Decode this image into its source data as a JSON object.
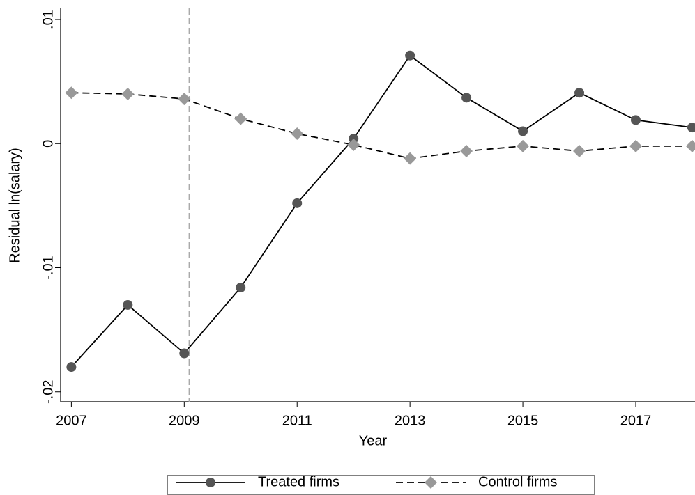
{
  "chart_data": {
    "type": "line",
    "x_label": "Year",
    "y_label": "Residual ln(salary)",
    "x": [
      2007,
      2008,
      2009,
      2010,
      2011,
      2012,
      2013,
      2014,
      2015,
      2016,
      2017,
      2018
    ],
    "series": [
      {
        "name": "Treated firms",
        "color": "#555555",
        "line_color": "#000000",
        "marker": "circle",
        "dash": false,
        "values": [
          -0.018,
          -0.013,
          -0.0169,
          -0.0116,
          -0.0048,
          0.0004,
          0.0071,
          0.0037,
          0.001,
          0.0041,
          0.0019,
          0.0013
        ]
      },
      {
        "name": "Control firms",
        "color": "#999999",
        "line_color": "#000000",
        "marker": "diamond",
        "dash": true,
        "values": [
          0.0041,
          0.004,
          0.0036,
          0.002,
          0.0008,
          -0.0001,
          -0.0012,
          -0.0006,
          -0.0002,
          -0.0006,
          -0.0002,
          -0.0002
        ]
      }
    ],
    "xlim": [
      2006.81,
      2018.05
    ],
    "ylim": [
      -0.0208,
      0.0109
    ],
    "xticks": [
      2007,
      2009,
      2011,
      2013,
      2015,
      2017
    ],
    "yticks": [
      {
        "value": -0.02,
        "label": "-.02"
      },
      {
        "value": -0.01,
        "label": "-.01"
      },
      0,
      {
        "value": 0.01,
        "label": ".01"
      }
    ],
    "vline": 2009.09,
    "grid": false,
    "legend": "bottom"
  }
}
